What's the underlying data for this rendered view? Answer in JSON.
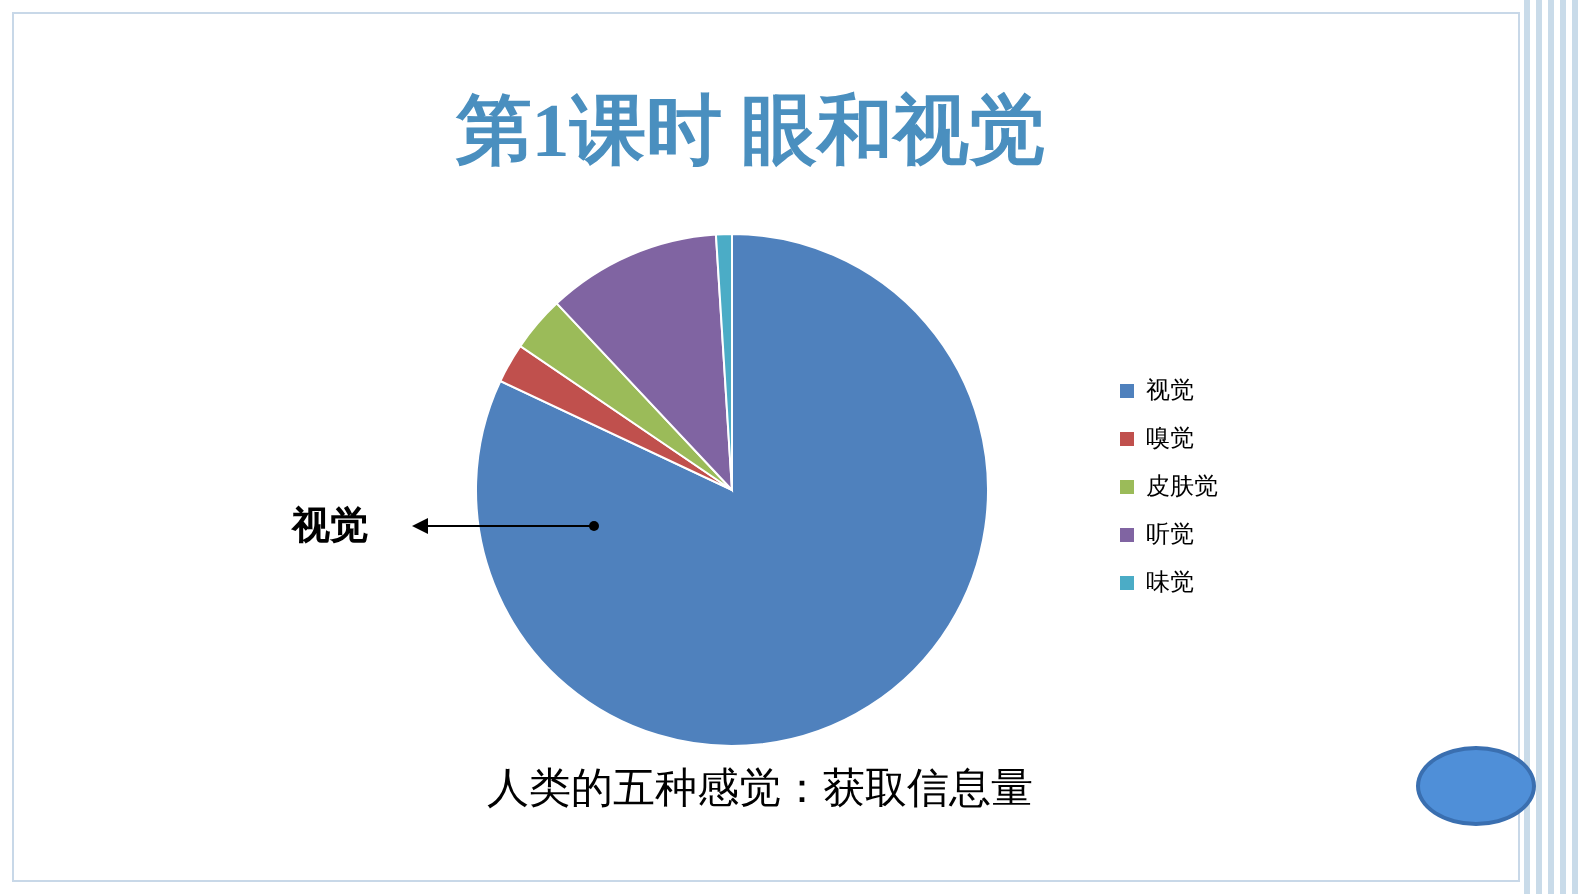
{
  "chart_data": {
    "type": "pie",
    "title": "第1课时  眼和视觉",
    "subtitle": "人类的五种感觉：获取信息量",
    "categories": [
      "视觉",
      "嗅觉",
      "皮肤觉",
      "听觉",
      "味觉"
    ],
    "values": [
      82,
      2.5,
      3.5,
      11,
      1
    ],
    "colors": [
      "#4f81bd",
      "#c0504d",
      "#9bbb59",
      "#8064a2",
      "#4bacc6"
    ],
    "legend": "right",
    "annotations": [
      "视觉"
    ]
  }
}
